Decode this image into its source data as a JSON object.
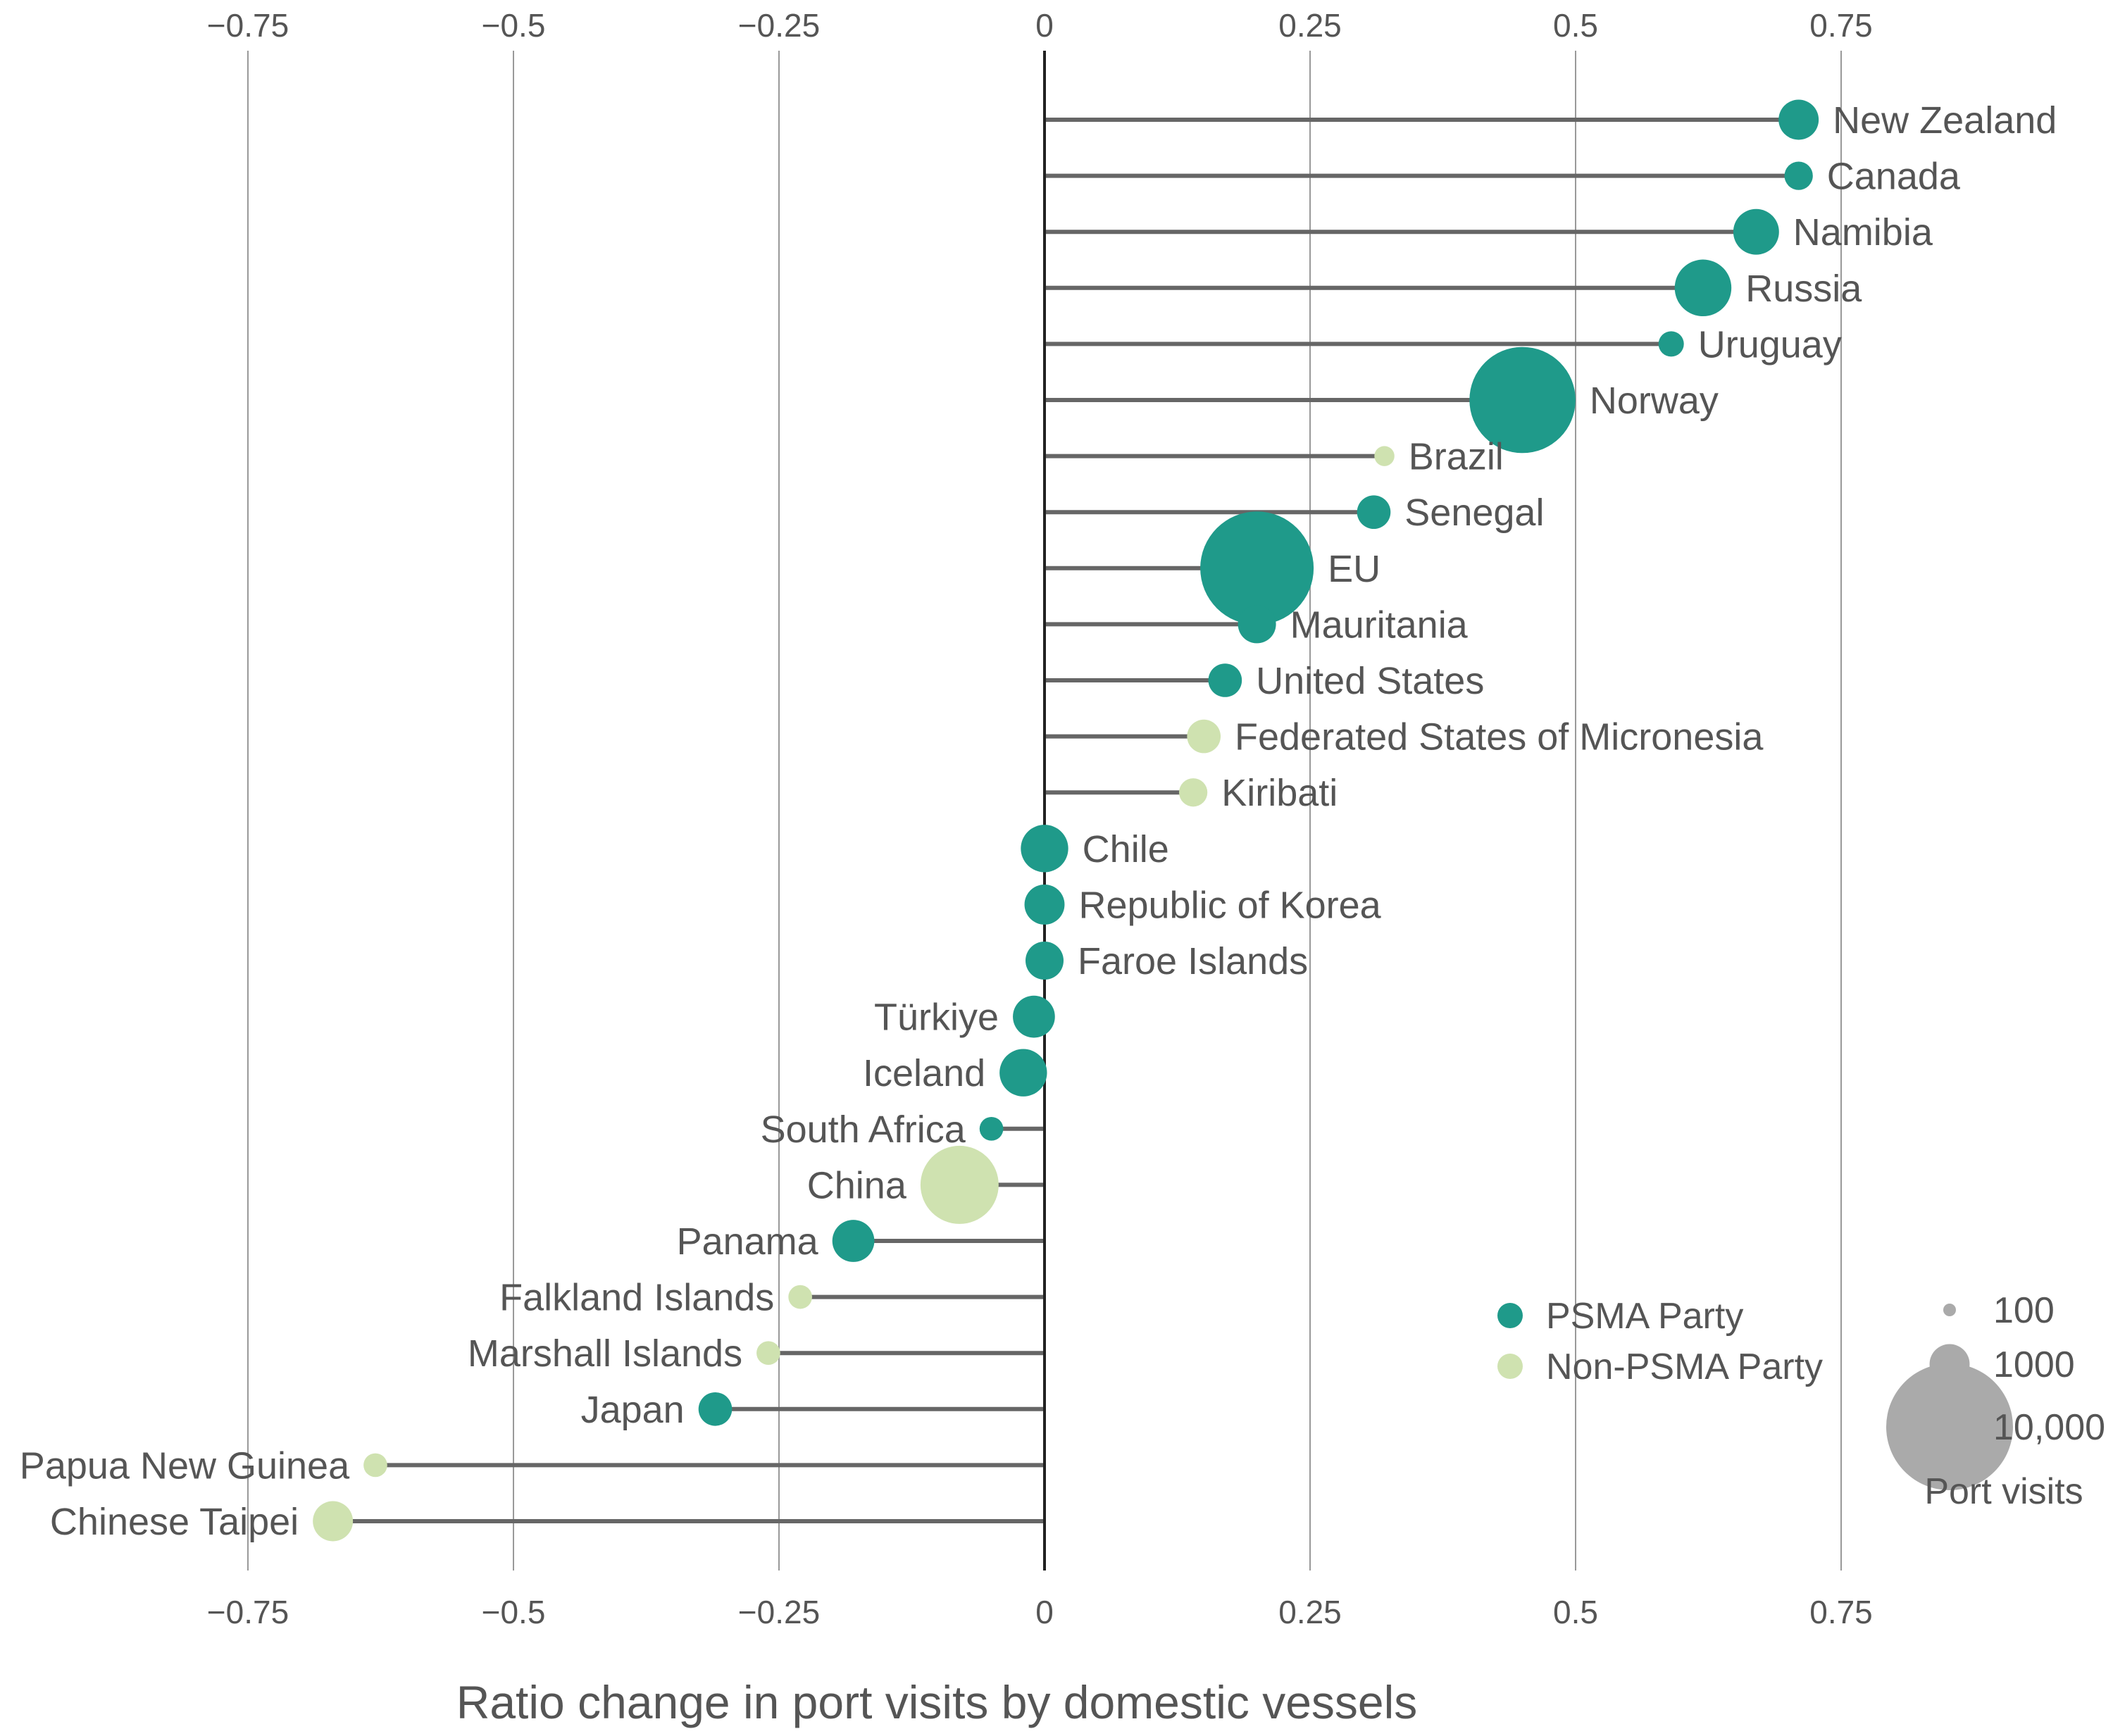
{
  "chart_data": {
    "type": "lollipop",
    "xlabel": "Ratio change in port visits by domestic vessels",
    "xlim": [
      -0.75,
      0.75
    ],
    "xticks": [
      {
        "value": -0.75,
        "label": "−0.75"
      },
      {
        "value": -0.5,
        "label": "−0.5"
      },
      {
        "value": -0.25,
        "label": "−0.25"
      },
      {
        "value": 0,
        "label": "0"
      },
      {
        "value": 0.25,
        "label": "0.25"
      },
      {
        "value": 0.5,
        "label": "0.5"
      },
      {
        "value": 0.75,
        "label": "0.75"
      }
    ],
    "colors": {
      "psma": "#1f9a8a",
      "non_psma": "#cfe2b0",
      "size_legend": "#aaaaaa",
      "stem": "#666666",
      "grid": "#999999",
      "zero": "#222222",
      "text": "#555555"
    },
    "points": [
      {
        "name": "New Zealand",
        "value": 0.71,
        "psma": true,
        "port_visits": 1000
      },
      {
        "name": "Canada",
        "value": 0.71,
        "psma": true,
        "port_visits": 500
      },
      {
        "name": "Namibia",
        "value": 0.67,
        "psma": true,
        "port_visits": 1300
      },
      {
        "name": "Russia",
        "value": 0.62,
        "psma": true,
        "port_visits": 2000
      },
      {
        "name": "Uruguay",
        "value": 0.59,
        "psma": true,
        "port_visits": 400
      },
      {
        "name": "Norway",
        "value": 0.45,
        "psma": true,
        "port_visits": 7000
      },
      {
        "name": "Brazil",
        "value": 0.32,
        "psma": false,
        "port_visits": 250
      },
      {
        "name": "Senegal",
        "value": 0.31,
        "psma": true,
        "port_visits": 700
      },
      {
        "name": "EU",
        "value": 0.2,
        "psma": true,
        "port_visits": 8000
      },
      {
        "name": "Mauritania",
        "value": 0.2,
        "psma": true,
        "port_visits": 900
      },
      {
        "name": "United States",
        "value": 0.17,
        "psma": true,
        "port_visits": 700
      },
      {
        "name": "Federated States of Micronesia",
        "value": 0.15,
        "psma": false,
        "port_visits": 700
      },
      {
        "name": "Kiribati",
        "value": 0.14,
        "psma": false,
        "port_visits": 500
      },
      {
        "name": "Chile",
        "value": 0.0,
        "psma": true,
        "port_visits": 1400
      },
      {
        "name": "Republic of Korea",
        "value": 0.0,
        "psma": true,
        "port_visits": 1000
      },
      {
        "name": "Faroe Islands",
        "value": 0.0,
        "psma": true,
        "port_visits": 900
      },
      {
        "name": "Türkiye",
        "value": -0.01,
        "psma": true,
        "port_visits": 1100
      },
      {
        "name": "Iceland",
        "value": -0.02,
        "psma": true,
        "port_visits": 1400
      },
      {
        "name": "South Africa",
        "value": -0.05,
        "psma": true,
        "port_visits": 350
      },
      {
        "name": "China",
        "value": -0.08,
        "psma": false,
        "port_visits": 3800
      },
      {
        "name": "Panama",
        "value": -0.18,
        "psma": true,
        "port_visits": 1100
      },
      {
        "name": "Falkland Islands",
        "value": -0.23,
        "psma": false,
        "port_visits": 350
      },
      {
        "name": "Marshall Islands",
        "value": -0.26,
        "psma": false,
        "port_visits": 350
      },
      {
        "name": "Japan",
        "value": -0.31,
        "psma": true,
        "port_visits": 700
      },
      {
        "name": "Papua New Guinea",
        "value": -0.63,
        "psma": false,
        "port_visits": 350
      },
      {
        "name": "Chinese Taipei",
        "value": -0.67,
        "psma": false,
        "port_visits": 1000
      }
    ],
    "legend": {
      "position": "bottom-right",
      "colors": [
        {
          "label": "PSMA Party",
          "psma": true
        },
        {
          "label": "Non-PSMA Party",
          "psma": false
        }
      ],
      "sizes": [
        {
          "label": "100",
          "port_visits": 100
        },
        {
          "label": "1000",
          "port_visits": 1000
        },
        {
          "label": "10,000",
          "port_visits": 10000
        }
      ],
      "size_title": "Port visits"
    }
  }
}
